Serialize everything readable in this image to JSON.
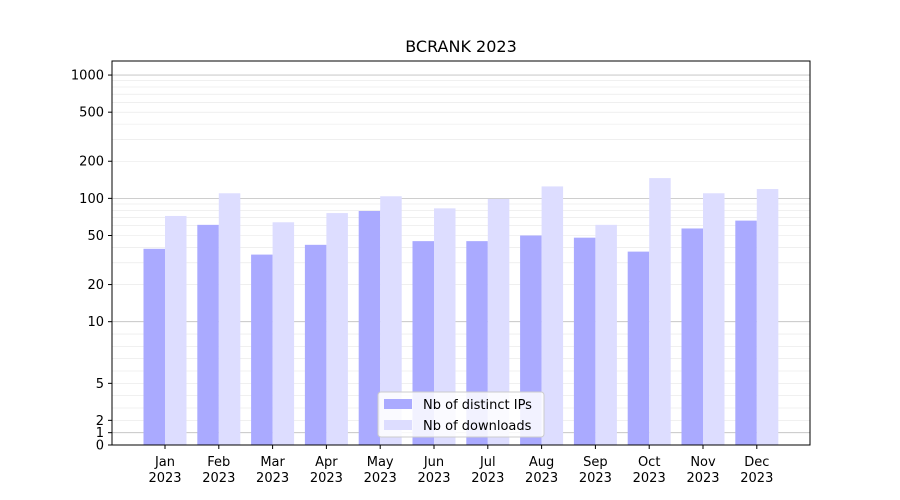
{
  "chart_data": {
    "type": "bar",
    "title": "BCRANK 2023",
    "xlabel": "",
    "ylabel": "",
    "y_scale": "symlog",
    "ylim": [
      0,
      1300
    ],
    "y_ticks": [
      0,
      1,
      2,
      5,
      10,
      20,
      50,
      100,
      200,
      500,
      1000
    ],
    "y_tick_labels": [
      "0",
      "1",
      "2",
      "5",
      "10",
      "20",
      "50",
      "100",
      "200",
      "500",
      "1000"
    ],
    "categories": [
      "Jan\n2023",
      "Feb\n2023",
      "Mar\n2023",
      "Apr\n2023",
      "May\n2023",
      "Jun\n2023",
      "Jul\n2023",
      "Aug\n2023",
      "Sep\n2023",
      "Oct\n2023",
      "Nov\n2023",
      "Dec\n2023"
    ],
    "series": [
      {
        "name": "Nb of distinct IPs",
        "color": "#aaaaff",
        "values": [
          39,
          61,
          35,
          42,
          79,
          45,
          45,
          50,
          48,
          37,
          57,
          66
        ]
      },
      {
        "name": "Nb of downloads",
        "color": "#ddddff",
        "values": [
          72,
          110,
          64,
          76,
          104,
          83,
          99,
          125,
          61,
          146,
          110,
          119
        ]
      }
    ],
    "grid": true,
    "legend_position": "bottom-center"
  }
}
